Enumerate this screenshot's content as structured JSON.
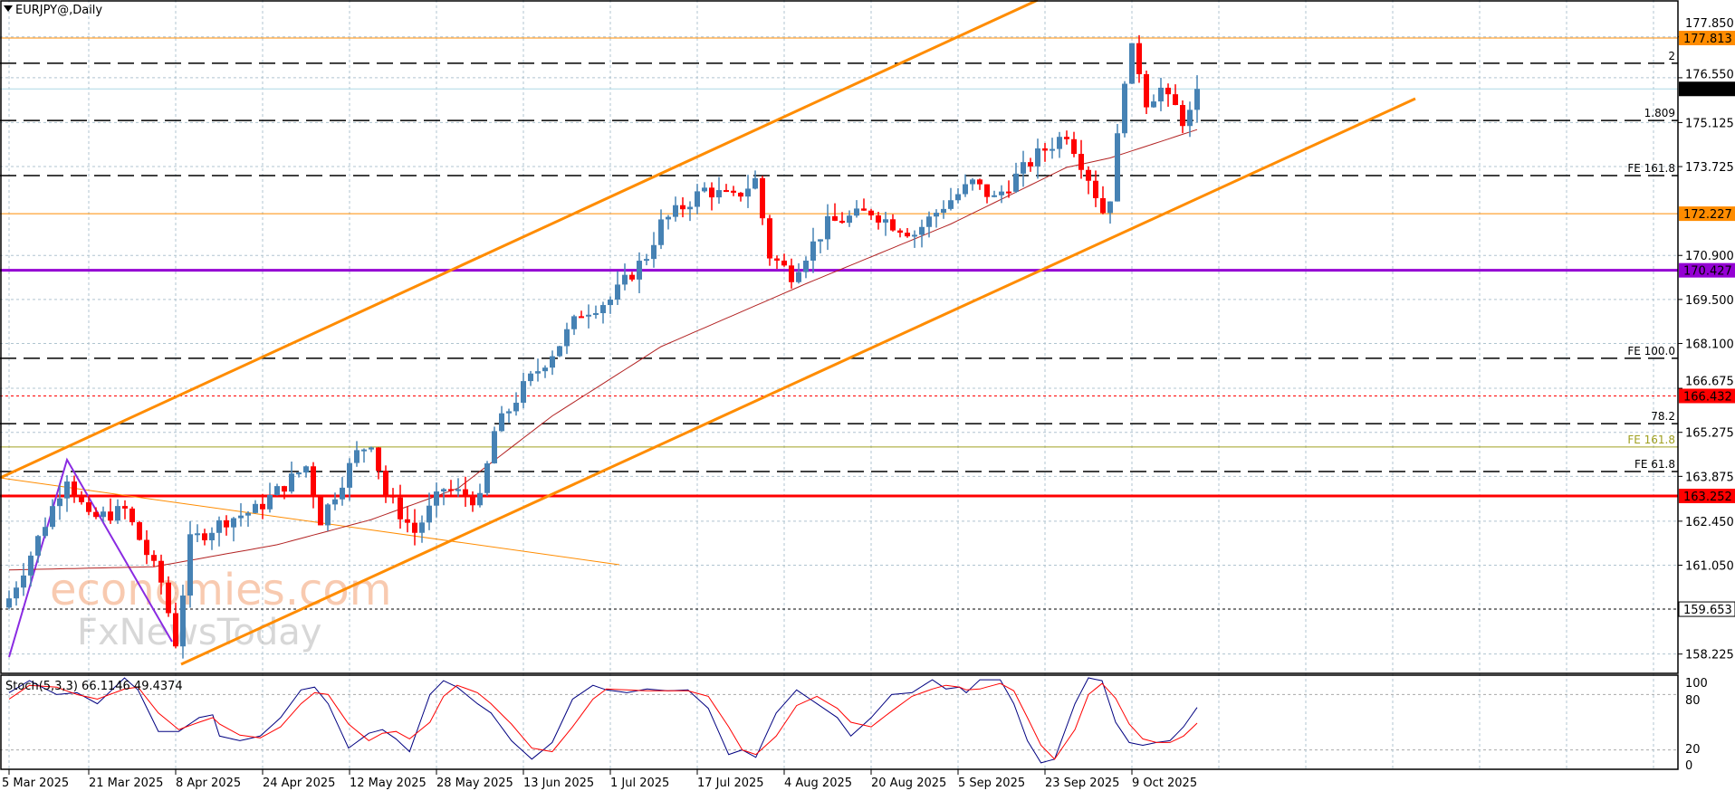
{
  "header": {
    "title": "EURJPY@,Daily"
  },
  "colors": {
    "bull": "#4682b4",
    "bear": "#ff0000",
    "channel": "#ff8c00",
    "ma": "#b22222",
    "grid": "#b0c4d0",
    "stoch_main": "#000080",
    "stoch_signal": "#ff0000"
  },
  "chart_data": {
    "type": "candlestick",
    "symbol": "EURJPY@",
    "timeframe": "Daily",
    "bar_count": 165,
    "ylim": [
      157.6,
      179.0
    ],
    "y_ticks": [
      "177.850",
      "176.550",
      "175.125",
      "173.725",
      "170.900",
      "169.500",
      "168.100",
      "166.675",
      "165.275",
      "163.875",
      "162.450",
      "161.050",
      "158.225"
    ],
    "x_ticks": [
      {
        "bar": 0,
        "label": "5 Mar 2025"
      },
      {
        "bar": 11,
        "label": "21 Mar 2025"
      },
      {
        "bar": 23,
        "label": "8 Apr 2025"
      },
      {
        "bar": 35,
        "label": "24 Apr 2025"
      },
      {
        "bar": 47,
        "label": "12 May 2025"
      },
      {
        "bar": 59,
        "label": "28 May 2025"
      },
      {
        "bar": 71,
        "label": "13 Jun 2025"
      },
      {
        "bar": 83,
        "label": "1 Jul 2025"
      },
      {
        "bar": 95,
        "label": "17 Jul 2025"
      },
      {
        "bar": 107,
        "label": "4 Aug 2025"
      },
      {
        "bar": 119,
        "label": "20 Aug 2025"
      },
      {
        "bar": 131,
        "label": "5 Sep 2025"
      },
      {
        "bar": 143,
        "label": "23 Sep 2025"
      },
      {
        "bar": 155,
        "label": "9 Oct 2025"
      }
    ],
    "close_keypoints": [
      [
        0,
        160.0
      ],
      [
        3,
        161.4
      ],
      [
        8,
        163.9
      ],
      [
        11,
        162.5
      ],
      [
        16,
        162.8
      ],
      [
        21,
        160.5
      ],
      [
        23,
        158.6
      ],
      [
        25,
        161.8
      ],
      [
        30,
        162.5
      ],
      [
        34,
        162.8
      ],
      [
        41,
        164.2
      ],
      [
        43,
        162.5
      ],
      [
        48,
        164.6
      ],
      [
        50,
        165.0
      ],
      [
        52,
        163.3
      ],
      [
        56,
        162.1
      ],
      [
        60,
        163.5
      ],
      [
        65,
        163.1
      ],
      [
        67,
        165.3
      ],
      [
        71,
        166.7
      ],
      [
        76,
        168.1
      ],
      [
        79,
        169.1
      ],
      [
        83,
        169.5
      ],
      [
        88,
        170.9
      ],
      [
        90,
        171.9
      ],
      [
        96,
        173.0
      ],
      [
        100,
        172.7
      ],
      [
        103,
        173.3
      ],
      [
        105,
        170.9
      ],
      [
        108,
        170.3
      ],
      [
        113,
        171.9
      ],
      [
        119,
        172.3
      ],
      [
        122,
        171.9
      ],
      [
        125,
        171.6
      ],
      [
        129,
        172.5
      ],
      [
        133,
        173.2
      ],
      [
        136,
        172.7
      ],
      [
        139,
        173.4
      ],
      [
        142,
        174.1
      ],
      [
        146,
        174.8
      ],
      [
        149,
        173.4
      ],
      [
        151,
        172.3
      ],
      [
        152,
        172.8
      ],
      [
        153,
        174.6
      ],
      [
        154,
        176.6
      ],
      [
        155,
        177.4
      ],
      [
        156,
        176.8
      ],
      [
        157,
        175.8
      ],
      [
        158,
        176.0
      ],
      [
        159,
        176.2
      ],
      [
        160,
        175.8
      ],
      [
        161,
        175.6
      ],
      [
        162,
        175.2
      ],
      [
        163,
        175.4
      ],
      [
        164,
        176.194
      ]
    ],
    "moving_average_keypoints": [
      [
        0,
        160.9
      ],
      [
        20,
        161.0
      ],
      [
        37,
        161.7
      ],
      [
        50,
        162.5
      ],
      [
        62,
        163.5
      ],
      [
        75,
        165.8
      ],
      [
        90,
        168.0
      ],
      [
        110,
        170.0
      ],
      [
        130,
        171.9
      ],
      [
        146,
        173.7
      ],
      [
        152,
        174.0
      ],
      [
        164,
        174.9
      ]
    ],
    "current_price": "176.194",
    "levels": [
      {
        "price": 177.813,
        "label": "177.813",
        "color": "#ff8c00",
        "style": "solid",
        "tag": true
      },
      {
        "price": 177.01,
        "label": "2",
        "color": "#000000",
        "style": "dash"
      },
      {
        "price": 176.194,
        "label": "176.194",
        "color": "#add8e6",
        "style": "solid",
        "tag": true,
        "tag_color": "#000000"
      },
      {
        "price": 175.19,
        "label": "1.809",
        "color": "#000000",
        "style": "dash"
      },
      {
        "price": 173.44,
        "label": "FE 161.8",
        "color": "#000000",
        "style": "dash"
      },
      {
        "price": 172.227,
        "label": "172.227",
        "color": "#ff8c00",
        "style": "solid",
        "tag": true
      },
      {
        "price": 170.427,
        "label": "170.427",
        "color": "#9400d3",
        "style": "thick",
        "tag": true
      },
      {
        "price": 167.63,
        "label": "FE 100.0",
        "color": "#000000",
        "style": "dash"
      },
      {
        "price": 166.432,
        "label": "166.432",
        "color": "#ff0000",
        "style": "dot",
        "tag": true
      },
      {
        "price": 165.55,
        "label": "78.2",
        "color": "#000000",
        "style": "dash"
      },
      {
        "price": 164.81,
        "label": "FE 161.8",
        "color": "#a0a020",
        "style": "solid"
      },
      {
        "price": 164.03,
        "label": "FE 61.8",
        "color": "#000000",
        "style": "dash"
      },
      {
        "price": 163.252,
        "label": "163.252",
        "color": "#ff0000",
        "style": "thick",
        "tag": true
      },
      {
        "price": 159.653,
        "label": "159.653",
        "color": "#000000",
        "style": "dot",
        "tag": true,
        "tag_color": "#ffffff"
      }
    ],
    "stochastic": {
      "label": "Stoch(5,3,3) 66.1146 49.4374",
      "main_value": 66.1146,
      "signal_value": 49.4374,
      "levels": [
        "100",
        "80",
        "20",
        "0"
      ],
      "main_keypoints": [
        [
          0,
          82
        ],
        [
          3,
          95
        ],
        [
          7,
          80
        ],
        [
          10,
          82
        ],
        [
          13,
          70
        ],
        [
          17,
          98
        ],
        [
          19,
          85
        ],
        [
          22,
          40
        ],
        [
          25,
          40
        ],
        [
          28,
          55
        ],
        [
          30,
          58
        ],
        [
          31,
          35
        ],
        [
          34,
          30
        ],
        [
          37,
          35
        ],
        [
          40,
          55
        ],
        [
          43,
          85
        ],
        [
          45,
          88
        ],
        [
          47,
          70
        ],
        [
          50,
          22
        ],
        [
          53,
          38
        ],
        [
          55,
          42
        ],
        [
          57,
          32
        ],
        [
          59,
          18
        ],
        [
          62,
          80
        ],
        [
          64,
          95
        ],
        [
          66,
          88
        ],
        [
          69,
          70
        ],
        [
          71,
          60
        ],
        [
          74,
          30
        ],
        [
          77,
          10
        ],
        [
          80,
          28
        ],
        [
          83,
          75
        ],
        [
          86,
          90
        ],
        [
          88,
          85
        ],
        [
          91,
          82
        ],
        [
          94,
          86
        ],
        [
          97,
          84
        ],
        [
          100,
          85
        ],
        [
          103,
          65
        ],
        [
          106,
          15
        ],
        [
          108,
          20
        ],
        [
          110,
          12
        ],
        [
          113,
          60
        ],
        [
          116,
          85
        ],
        [
          119,
          70
        ],
        [
          122,
          55
        ],
        [
          124,
          35
        ],
        [
          127,
          55
        ],
        [
          130,
          80
        ],
        [
          133,
          82
        ],
        [
          136,
          96
        ],
        [
          138,
          86
        ],
        [
          140,
          88
        ],
        [
          141,
          82
        ],
        [
          143,
          96
        ],
        [
          146,
          96
        ],
        [
          148,
          70
        ],
        [
          150,
          30
        ],
        [
          152,
          6
        ],
        [
          154,
          10
        ],
        [
          157,
          70
        ],
        [
          159,
          98
        ],
        [
          161,
          95
        ],
        [
          163,
          50
        ],
        [
          165,
          28
        ],
        [
          167,
          25
        ],
        [
          169,
          28
        ],
        [
          171,
          30
        ],
        [
          173,
          45
        ],
        [
          175,
          66
        ]
      ],
      "signal_keypoints": [
        [
          0,
          75
        ],
        [
          3,
          90
        ],
        [
          7,
          88
        ],
        [
          10,
          80
        ],
        [
          13,
          75
        ],
        [
          17,
          86
        ],
        [
          19,
          88
        ],
        [
          22,
          60
        ],
        [
          25,
          42
        ],
        [
          28,
          50
        ],
        [
          30,
          55
        ],
        [
          31,
          48
        ],
        [
          34,
          36
        ],
        [
          37,
          33
        ],
        [
          40,
          45
        ],
        [
          43,
          70
        ],
        [
          45,
          82
        ],
        [
          47,
          80
        ],
        [
          50,
          48
        ],
        [
          53,
          30
        ],
        [
          55,
          38
        ],
        [
          57,
          40
        ],
        [
          59,
          32
        ],
        [
          62,
          50
        ],
        [
          64,
          78
        ],
        [
          66,
          90
        ],
        [
          69,
          82
        ],
        [
          71,
          70
        ],
        [
          74,
          48
        ],
        [
          77,
          22
        ],
        [
          80,
          18
        ],
        [
          83,
          45
        ],
        [
          86,
          75
        ],
        [
          88,
          86
        ],
        [
          91,
          85
        ],
        [
          94,
          84
        ],
        [
          97,
          84
        ],
        [
          100,
          84
        ],
        [
          103,
          78
        ],
        [
          106,
          45
        ],
        [
          108,
          20
        ],
        [
          110,
          15
        ],
        [
          113,
          35
        ],
        [
          116,
          68
        ],
        [
          119,
          78
        ],
        [
          122,
          65
        ],
        [
          124,
          50
        ],
        [
          127,
          45
        ],
        [
          130,
          62
        ],
        [
          133,
          78
        ],
        [
          136,
          86
        ],
        [
          138,
          90
        ],
        [
          140,
          88
        ],
        [
          141,
          85
        ],
        [
          143,
          86
        ],
        [
          146,
          92
        ],
        [
          148,
          84
        ],
        [
          150,
          55
        ],
        [
          152,
          25
        ],
        [
          154,
          10
        ],
        [
          157,
          42
        ],
        [
          159,
          80
        ],
        [
          161,
          92
        ],
        [
          163,
          76
        ],
        [
          165,
          48
        ],
        [
          167,
          32
        ],
        [
          169,
          28
        ],
        [
          171,
          28
        ],
        [
          173,
          35
        ],
        [
          175,
          49
        ]
      ]
    }
  },
  "watermark": {
    "line1": "economies.com",
    "line2": "FxNewsToday"
  }
}
